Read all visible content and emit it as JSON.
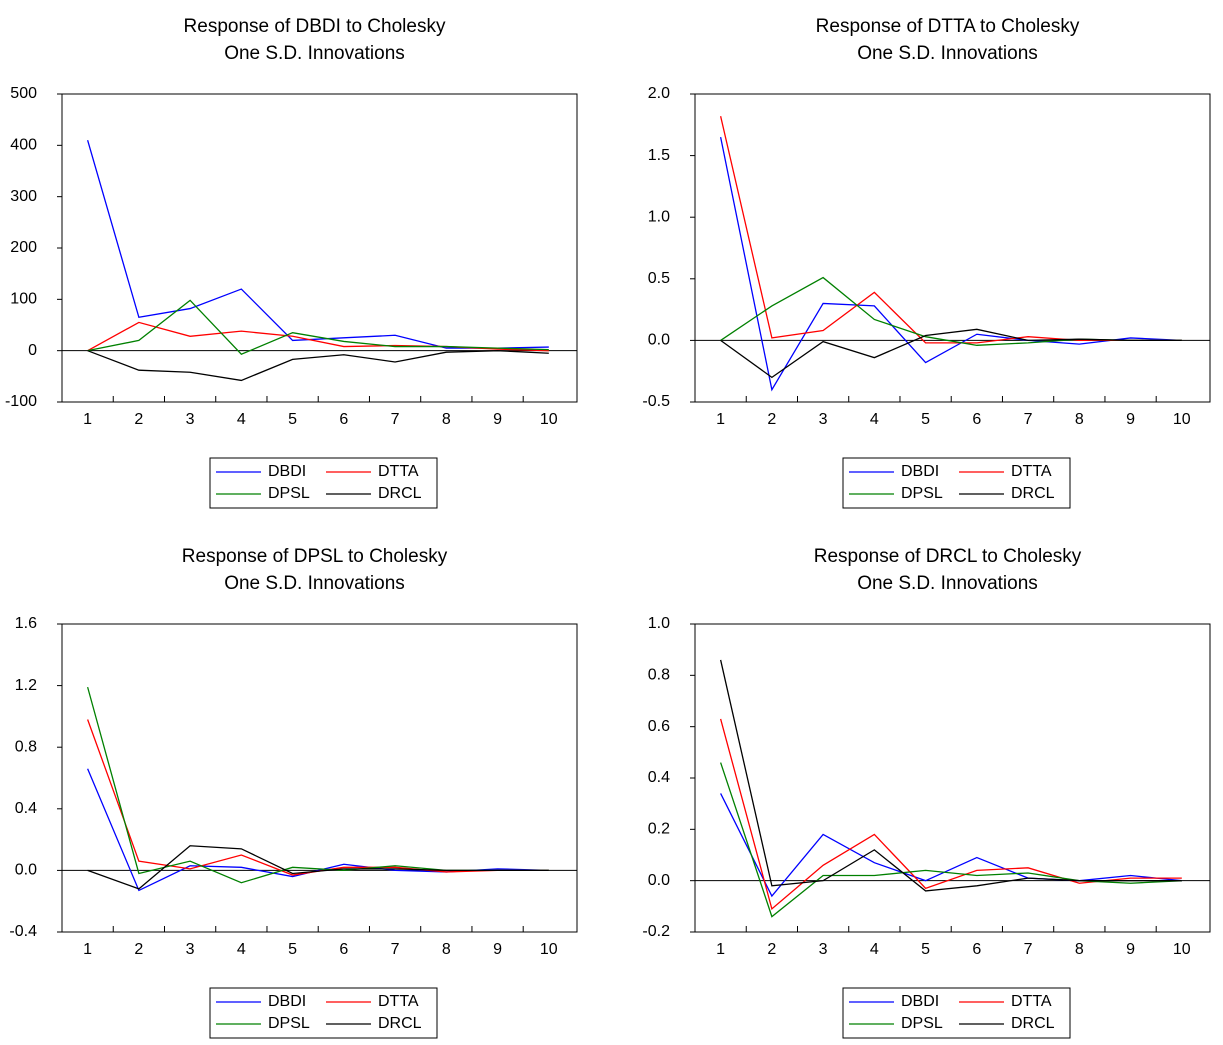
{
  "chart_data": [
    {
      "type": "line",
      "title": "Response of DBDI to Cholesky",
      "subtitle": "One S.D. Innovations",
      "categories": [
        "1",
        "2",
        "3",
        "4",
        "5",
        "6",
        "7",
        "8",
        "9",
        "10"
      ],
      "ylim": [
        -100,
        500
      ],
      "yticks": [
        -100,
        0,
        100,
        200,
        300,
        400,
        500
      ],
      "series": [
        {
          "name": "DBDI",
          "color": "#0000ff",
          "values": [
            410,
            65,
            82,
            120,
            20,
            25,
            30,
            5,
            5,
            7
          ]
        },
        {
          "name": "DTTA",
          "color": "#ff0000",
          "values": [
            0,
            55,
            28,
            38,
            28,
            8,
            10,
            8,
            3,
            0
          ]
        },
        {
          "name": "DPSL",
          "color": "#008000",
          "values": [
            0,
            20,
            98,
            -7,
            35,
            18,
            8,
            8,
            5,
            2
          ]
        },
        {
          "name": "DRCL",
          "color": "#000000",
          "values": [
            0,
            -38,
            -42,
            -58,
            -17,
            -8,
            -22,
            -3,
            0,
            -5
          ]
        }
      ]
    },
    {
      "type": "line",
      "title": "Response of DTTA to Cholesky",
      "subtitle": "One S.D. Innovations",
      "categories": [
        "1",
        "2",
        "3",
        "4",
        "5",
        "6",
        "7",
        "8",
        "9",
        "10"
      ],
      "ylim": [
        -0.5,
        2.0
      ],
      "yticks": [
        -0.5,
        {
          "value": 0,
          "label": "0.0"
        },
        0.5,
        {
          "value": 1,
          "label": "1.0"
        },
        1.5,
        {
          "value": 2,
          "label": "2.0"
        }
      ],
      "series": [
        {
          "name": "DBDI",
          "color": "#0000ff",
          "values": [
            1.65,
            -0.4,
            0.3,
            0.28,
            -0.18,
            0.05,
            0.0,
            -0.03,
            0.02,
            0.0
          ]
        },
        {
          "name": "DTTA",
          "color": "#ff0000",
          "values": [
            1.82,
            0.02,
            0.08,
            0.39,
            -0.02,
            -0.02,
            0.03,
            0.0,
            0.0,
            0.0
          ]
        },
        {
          "name": "DPSL",
          "color": "#008000",
          "values": [
            0,
            0.28,
            0.51,
            0.17,
            0.03,
            -0.04,
            -0.02,
            0.01,
            0.0,
            0.0
          ]
        },
        {
          "name": "DRCL",
          "color": "#000000",
          "values": [
            0,
            -0.3,
            -0.01,
            -0.14,
            0.04,
            0.09,
            0.0,
            0.01,
            0.0,
            0.0
          ]
        }
      ]
    },
    {
      "type": "line",
      "title": "Response of DPSL to Cholesky",
      "subtitle": "One S.D. Innovations",
      "categories": [
        "1",
        "2",
        "3",
        "4",
        "5",
        "6",
        "7",
        "8",
        "9",
        "10"
      ],
      "ylim": [
        -0.4,
        1.6
      ],
      "yticks": [
        -0.4,
        {
          "value": 0,
          "label": "0.0"
        },
        0.4,
        0.8,
        1.2,
        1.6
      ],
      "series": [
        {
          "name": "DBDI",
          "color": "#0000ff",
          "values": [
            0.66,
            -0.13,
            0.03,
            0.02,
            -0.04,
            0.04,
            0.0,
            -0.01,
            0.01,
            0.0
          ]
        },
        {
          "name": "DTTA",
          "color": "#ff0000",
          "values": [
            0.98,
            0.06,
            0.01,
            0.1,
            -0.03,
            0.02,
            0.02,
            -0.01,
            0.0,
            0.0
          ]
        },
        {
          "name": "DPSL",
          "color": "#008000",
          "values": [
            1.19,
            -0.02,
            0.06,
            -0.08,
            0.02,
            0.0,
            0.03,
            0.0,
            0.0,
            0.0
          ]
        },
        {
          "name": "DRCL",
          "color": "#000000",
          "values": [
            0,
            -0.12,
            0.16,
            0.14,
            -0.02,
            0.01,
            0.01,
            0.0,
            0.0,
            0.0
          ]
        }
      ]
    },
    {
      "type": "line",
      "title": "Response of DRCL to Cholesky",
      "subtitle": "One S.D. Innovations",
      "categories": [
        "1",
        "2",
        "3",
        "4",
        "5",
        "6",
        "7",
        "8",
        "9",
        "10"
      ],
      "ylim": [
        -0.2,
        1.0
      ],
      "yticks": [
        -0.2,
        {
          "value": 0,
          "label": "0.0"
        },
        0.2,
        0.4,
        0.6,
        0.8,
        {
          "value": 1,
          "label": "1.0"
        }
      ],
      "series": [
        {
          "name": "DBDI",
          "color": "#0000ff",
          "values": [
            0.34,
            -0.06,
            0.18,
            0.07,
            0.0,
            0.09,
            0.01,
            0.0,
            0.02,
            0.0
          ]
        },
        {
          "name": "DTTA",
          "color": "#ff0000",
          "values": [
            0.63,
            -0.11,
            0.06,
            0.18,
            -0.03,
            0.04,
            0.05,
            -0.01,
            0.01,
            0.01
          ]
        },
        {
          "name": "DPSL",
          "color": "#008000",
          "values": [
            0.46,
            -0.14,
            0.02,
            0.02,
            0.04,
            0.02,
            0.03,
            0.0,
            -0.01,
            0.0
          ]
        },
        {
          "name": "DRCL",
          "color": "#000000",
          "values": [
            0.86,
            -0.02,
            0.0,
            0.12,
            -0.04,
            -0.02,
            0.01,
            0.0,
            0.0,
            0.0
          ]
        }
      ]
    }
  ]
}
